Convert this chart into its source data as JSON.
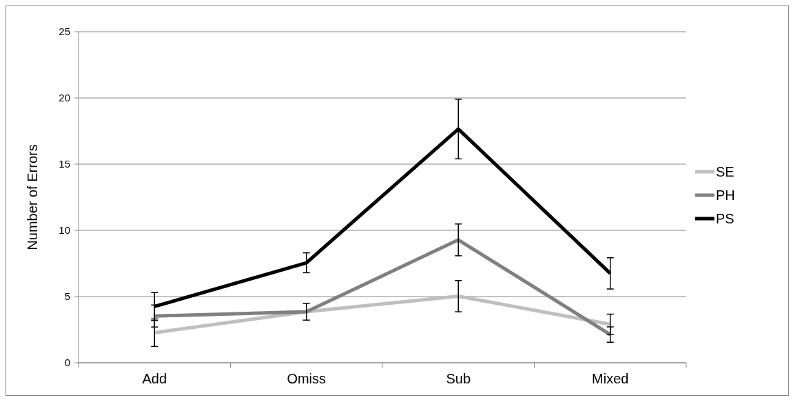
{
  "chart_data": {
    "type": "line",
    "ylabel": "Number of Errors",
    "categories": [
      "Add",
      "Omiss",
      "Sub",
      "Mixed"
    ],
    "ylim": [
      0,
      25
    ],
    "yticks": [
      0,
      5,
      10,
      15,
      20,
      25
    ],
    "grid": "y",
    "legend": "right",
    "marker": "none",
    "line_style": "solid",
    "series": [
      {
        "name": "SE",
        "color": "#bfbfbf",
        "values": [
          2.27,
          3.85,
          5.03,
          2.9
        ],
        "errors": [
          1.04,
          null,
          1.18,
          0.77
        ]
      },
      {
        "name": "PH",
        "color": "#808080",
        "values": [
          3.53,
          3.85,
          9.28,
          2.13
        ],
        "errors": [
          0.83,
          0.63,
          1.2,
          0.58
        ]
      },
      {
        "name": "PS",
        "color": "#000000",
        "values": [
          4.25,
          7.55,
          17.65,
          6.75
        ],
        "errors": [
          1.05,
          0.75,
          2.25,
          1.18
        ]
      }
    ]
  }
}
